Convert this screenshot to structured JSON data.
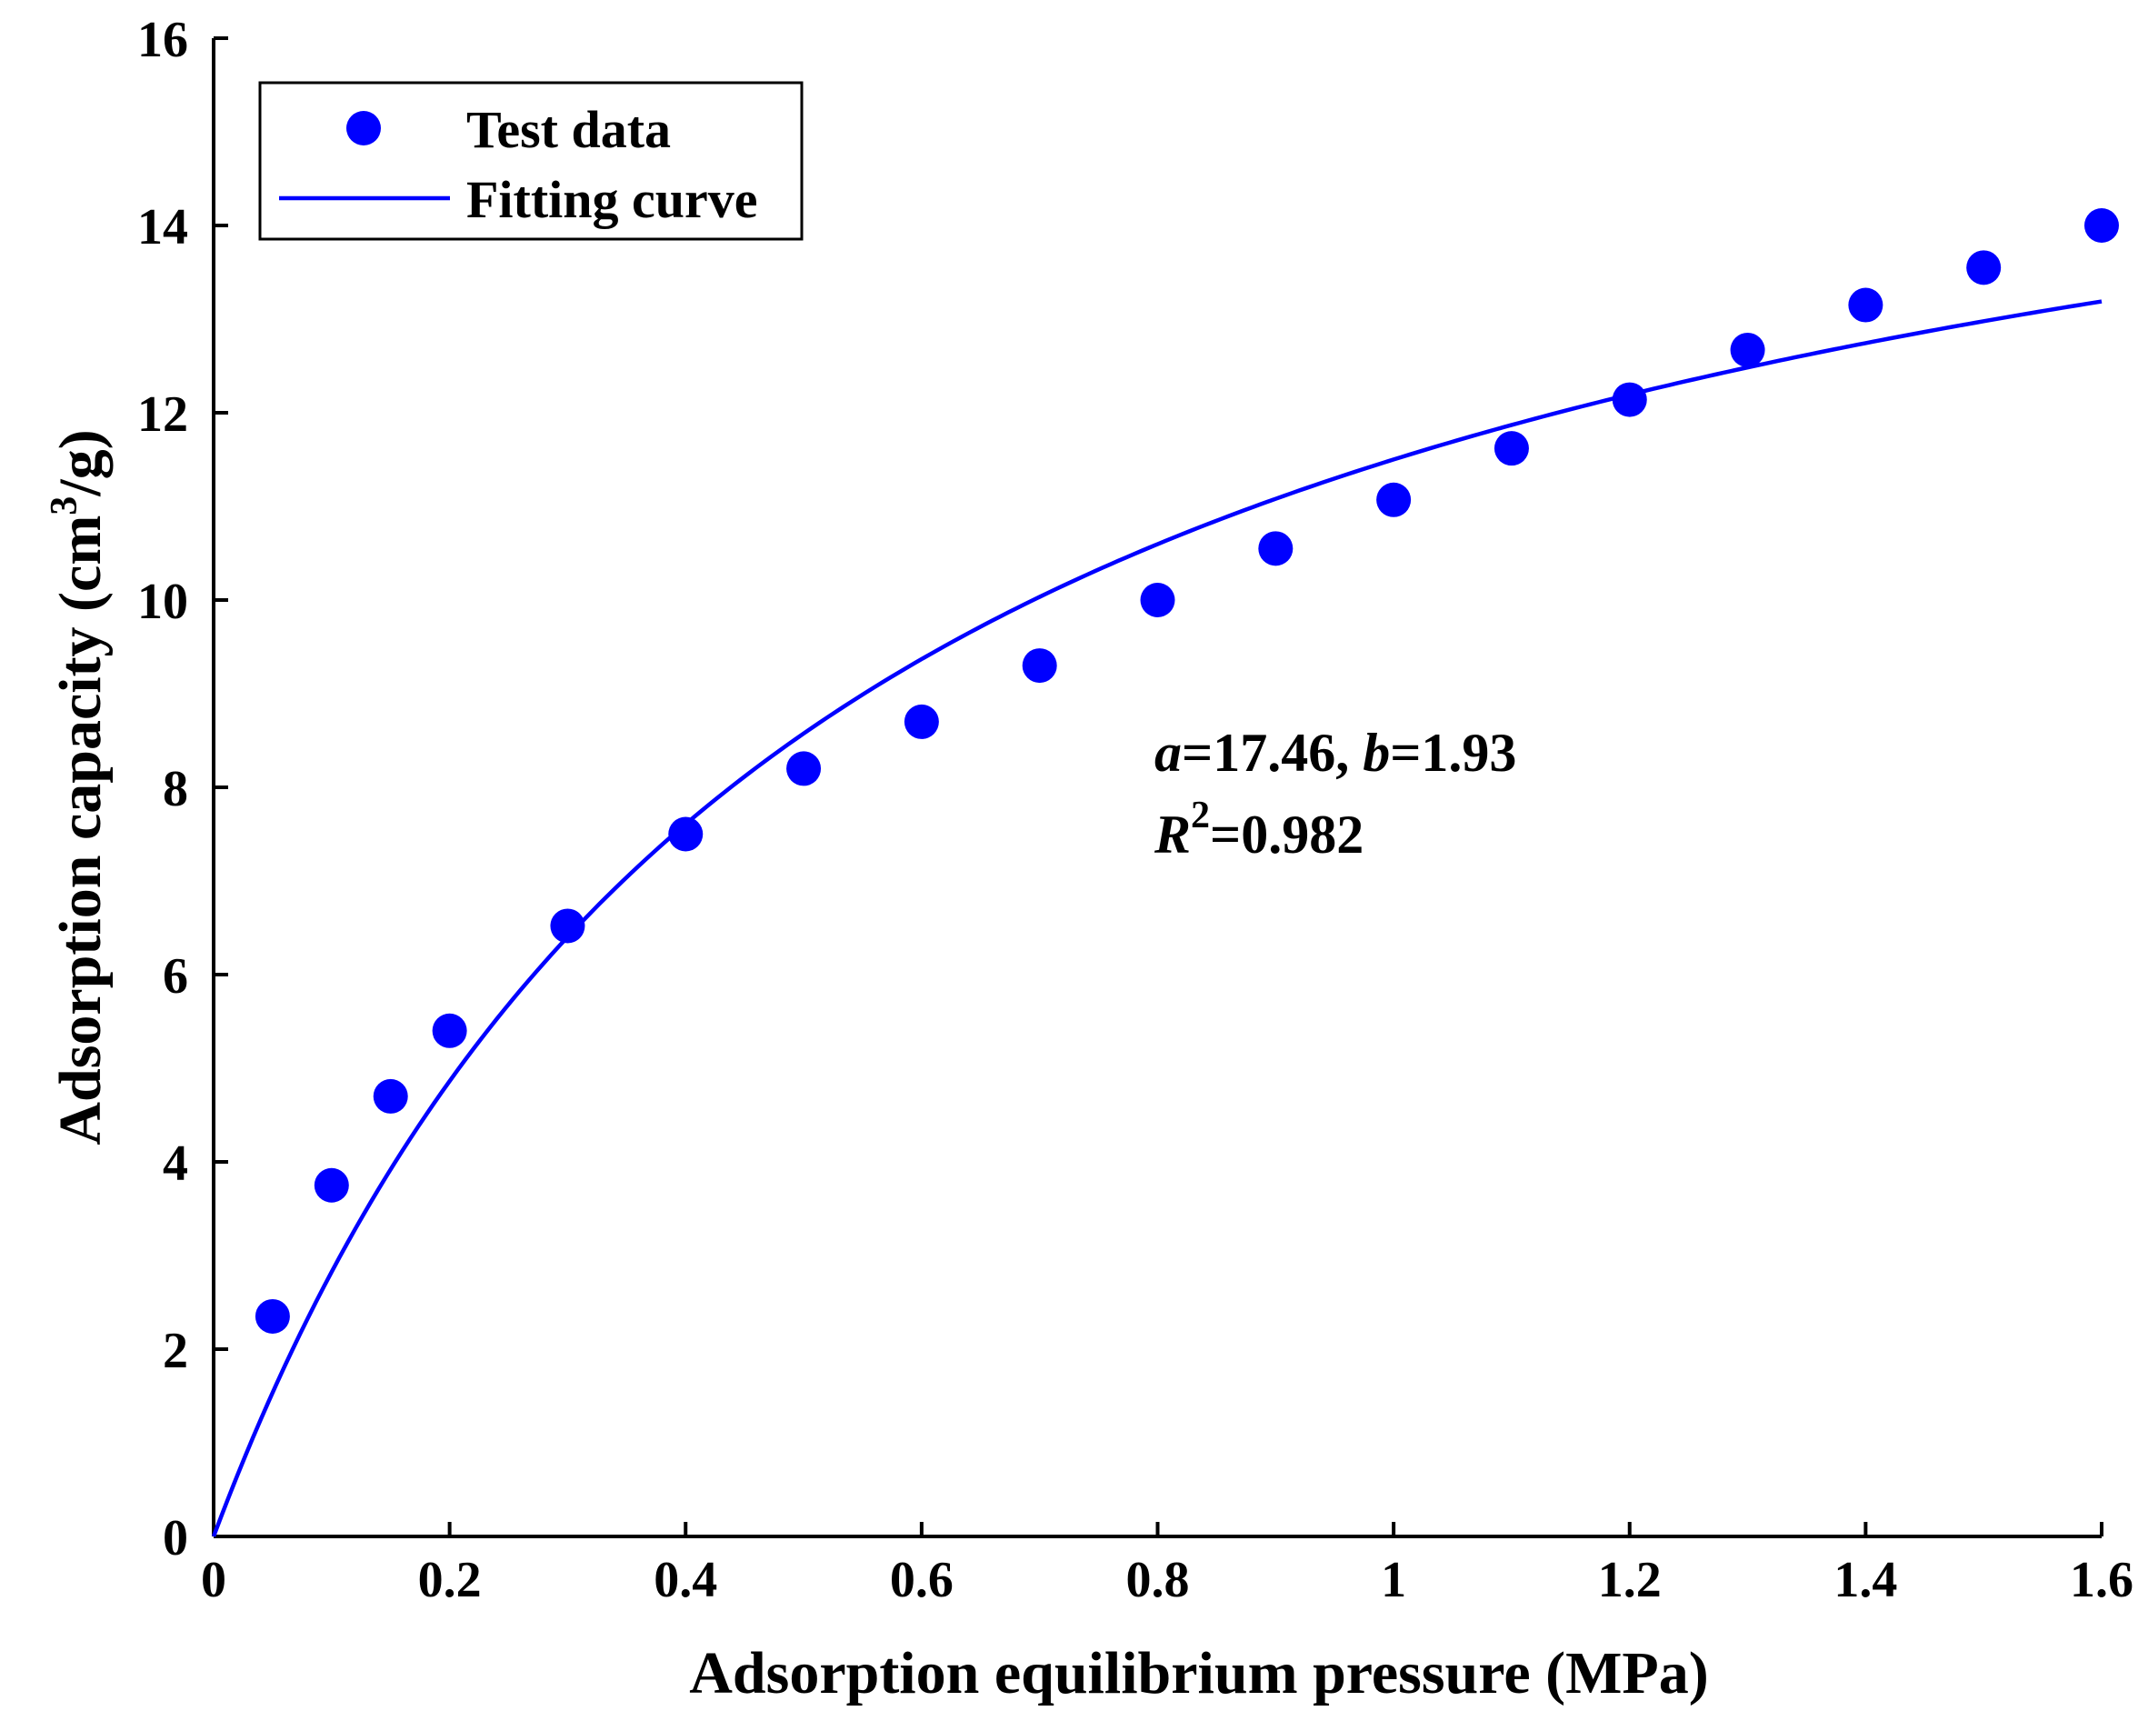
{
  "chart_data": {
    "type": "scatter",
    "title": "",
    "xlabel": "Adsorption equilibrium pressure (MPa)",
    "ylabel_main": "Adsorption capacity (cm",
    "ylabel_sup": "3",
    "ylabel_end": "/g)",
    "xlim": [
      0,
      1.6
    ],
    "ylim": [
      0,
      16
    ],
    "xticks": [
      0,
      0.2,
      0.4,
      0.6,
      0.8,
      1.0,
      1.2,
      1.4,
      1.6
    ],
    "xtick_labels": [
      "0",
      "0.2",
      "0.4",
      "0.6",
      "0.8",
      "1",
      "1.2",
      "1.4",
      "1.6"
    ],
    "yticks": [
      0,
      2,
      4,
      6,
      8,
      10,
      12,
      14,
      16
    ],
    "ytick_labels": [
      "0",
      "2",
      "4",
      "6",
      "8",
      "10",
      "12",
      "14",
      "16"
    ],
    "series": [
      {
        "name": "Test data",
        "kind": "scatter",
        "color": "#0000ff",
        "x": [
          0.05,
          0.1,
          0.15,
          0.2,
          0.3,
          0.4,
          0.5,
          0.6,
          0.7,
          0.8,
          0.9,
          1.0,
          1.1,
          1.2,
          1.3,
          1.4,
          1.5,
          1.6
        ],
        "y": [
          2.35,
          3.75,
          4.7,
          5.4,
          6.52,
          7.5,
          8.2,
          8.7,
          9.3,
          10.0,
          10.55,
          11.07,
          11.62,
          12.14,
          12.67,
          13.15,
          13.55,
          14.0
        ]
      },
      {
        "name": "Fitting curve",
        "kind": "line",
        "color": "#0000ff",
        "model": "langmuir",
        "a": 17.46,
        "b": 1.93,
        "x_range": [
          0,
          1.6
        ]
      }
    ],
    "legend": {
      "position": "top-left",
      "entries": [
        "Test data",
        "Fitting curve"
      ]
    },
    "annotation": {
      "a_label": "a",
      "a_value": "=17.46, ",
      "b_label": "b",
      "b_value": "=1.93",
      "r_label": "R",
      "r_sup": "2",
      "r_value": "=0.982"
    }
  }
}
